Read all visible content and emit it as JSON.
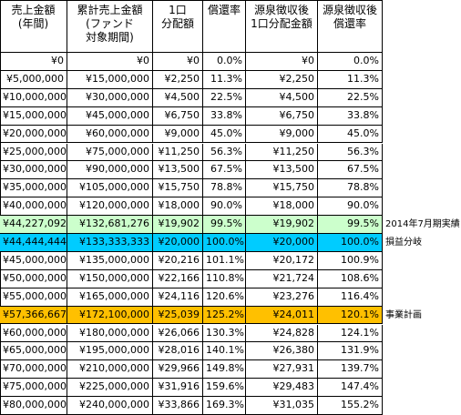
{
  "table": {
    "header": [
      [
        "売上金額",
        "(年間)"
      ],
      [
        "累計売上金額",
        "(ファンド",
        "対象期間)"
      ],
      [
        "1口",
        "分配額"
      ],
      [
        "償還率"
      ],
      [
        "源泉徴収後",
        "1口分配金額"
      ],
      [
        "源泉徴収後",
        "償還率"
      ]
    ],
    "rows": [
      {
        "cells": [
          "¥0",
          "¥0",
          "¥0",
          "0.0%",
          "¥0",
          "0.0%"
        ]
      },
      {
        "cells": [
          "¥5,000,000",
          "¥15,000,000",
          "¥2,250",
          "11.3%",
          "¥2,250",
          "11.3%"
        ]
      },
      {
        "cells": [
          "¥10,000,000",
          "¥30,000,000",
          "¥4,500",
          "22.5%",
          "¥4,500",
          "22.5%"
        ]
      },
      {
        "cells": [
          "¥15,000,000",
          "¥45,000,000",
          "¥6,750",
          "33.8%",
          "¥6,750",
          "33.8%"
        ]
      },
      {
        "cells": [
          "¥20,000,000",
          "¥60,000,000",
          "¥9,000",
          "45.0%",
          "¥9,000",
          "45.0%"
        ]
      },
      {
        "cells": [
          "¥25,000,000",
          "¥75,000,000",
          "¥11,250",
          "56.3%",
          "¥11,250",
          "56.3%"
        ]
      },
      {
        "cells": [
          "¥30,000,000",
          "¥90,000,000",
          "¥13,500",
          "67.5%",
          "¥13,500",
          "67.5%"
        ]
      },
      {
        "cells": [
          "¥35,000,000",
          "¥105,000,000",
          "¥15,750",
          "78.8%",
          "¥15,750",
          "78.8%"
        ]
      },
      {
        "cells": [
          "¥40,000,000",
          "¥120,000,000",
          "¥18,000",
          "90.0%",
          "¥18,000",
          "90.0%"
        ]
      },
      {
        "cells": [
          "¥44,227,092",
          "¥132,681,276",
          "¥19,902",
          "99.5%",
          "¥19,902",
          "99.5%"
        ],
        "highlight": "#ccffcc",
        "note": "2014年7月期実績"
      },
      {
        "cells": [
          "¥44,444,444",
          "¥133,333,333",
          "¥20,000",
          "100.0%",
          "¥20,000",
          "100.0%"
        ],
        "highlight": "#00ccff",
        "note": "損益分岐"
      },
      {
        "cells": [
          "¥45,000,000",
          "¥135,000,000",
          "¥20,216",
          "101.1%",
          "¥20,172",
          "100.9%"
        ]
      },
      {
        "cells": [
          "¥50,000,000",
          "¥150,000,000",
          "¥22,166",
          "110.8%",
          "¥21,724",
          "108.6%"
        ]
      },
      {
        "cells": [
          "¥55,000,000",
          "¥165,000,000",
          "¥24,116",
          "120.6%",
          "¥23,276",
          "116.4%"
        ]
      },
      {
        "cells": [
          "¥57,366,667",
          "¥172,100,000",
          "¥25,039",
          "125.2%",
          "¥24,011",
          "120.1%"
        ],
        "highlight": "#ffc000",
        "note": "事業計画"
      },
      {
        "cells": [
          "¥60,000,000",
          "¥180,000,000",
          "¥26,066",
          "130.3%",
          "¥24,828",
          "124.1%"
        ]
      },
      {
        "cells": [
          "¥65,000,000",
          "¥195,000,000",
          "¥28,016",
          "140.1%",
          "¥26,380",
          "131.9%"
        ]
      },
      {
        "cells": [
          "¥70,000,000",
          "¥210,000,000",
          "¥29,966",
          "149.8%",
          "¥27,931",
          "139.7%"
        ]
      },
      {
        "cells": [
          "¥75,000,000",
          "¥225,000,000",
          "¥31,916",
          "159.6%",
          "¥29,483",
          "147.4%"
        ]
      },
      {
        "cells": [
          "¥80,000,000",
          "¥240,000,000",
          "¥33,866",
          "169.3%",
          "¥31,035",
          "155.2%"
        ]
      }
    ]
  }
}
